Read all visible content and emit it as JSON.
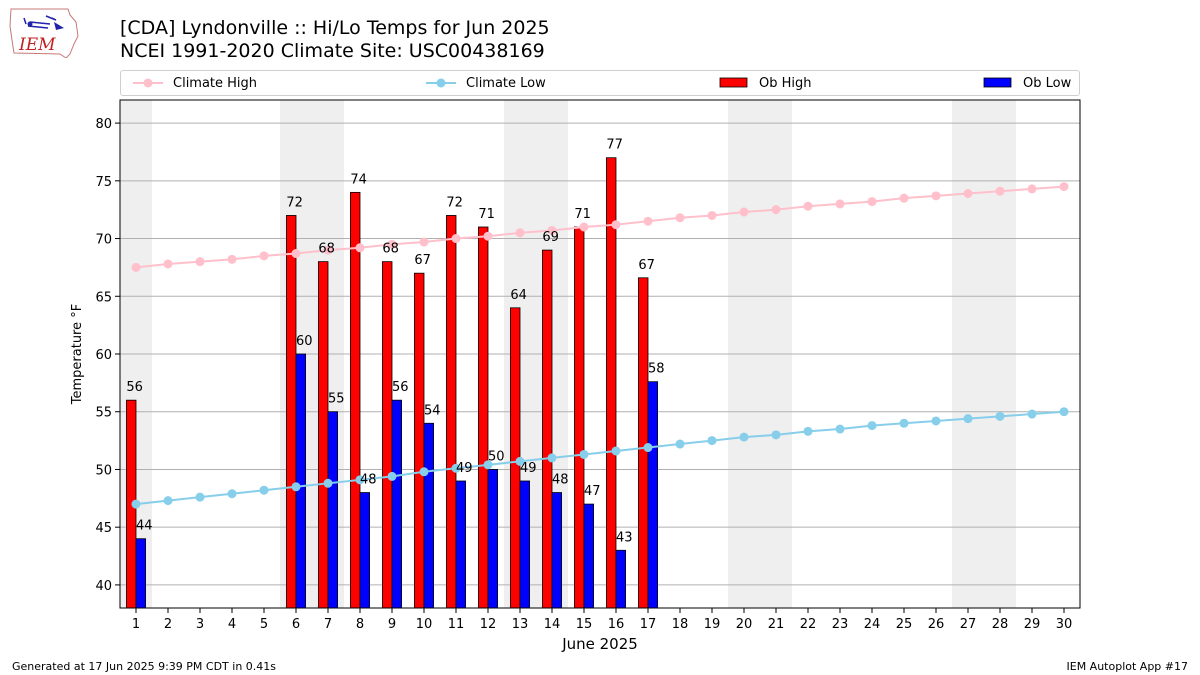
{
  "header": {
    "title_line1": "[CDA] Lyndonville :: Hi/Lo Temps for Jun 2025",
    "title_line2": "NCEI 1991-2020 Climate Site: USC00438169"
  },
  "logo": {
    "text": "IEM",
    "icon": "iem-iowa-logo"
  },
  "legend": {
    "climate_high": "Climate High",
    "climate_low": "Climate Low",
    "ob_high": "Ob High",
    "ob_low": "Ob Low"
  },
  "footer": {
    "left": "Generated at 17 Jun 2025 9:39 PM CDT in 0.41s",
    "right": "IEM Autoplot App #17"
  },
  "chart_data": {
    "type": "bar",
    "title": "[CDA] Lyndonville :: Hi/Lo Temps for Jun 2025",
    "subtitle": "NCEI 1991-2020 Climate Site: USC00438169",
    "xlabel": "June 2025",
    "ylabel": "Temperature °F",
    "xlim": [
      0.5,
      30.5
    ],
    "ylim": [
      38,
      82
    ],
    "yticks": [
      40,
      45,
      50,
      55,
      60,
      65,
      70,
      75,
      80
    ],
    "x": [
      1,
      2,
      3,
      4,
      5,
      6,
      7,
      8,
      9,
      10,
      11,
      12,
      13,
      14,
      15,
      16,
      17,
      18,
      19,
      20,
      21,
      22,
      23,
      24,
      25,
      26,
      27,
      28,
      29,
      30
    ],
    "grid": "horizontal",
    "legend_position": "top",
    "weekend_shading": [
      [
        0.5,
        1.5
      ],
      [
        5.5,
        7.5
      ],
      [
        12.5,
        14.5
      ],
      [
        19.5,
        21.5
      ],
      [
        26.5,
        28.5
      ]
    ],
    "colors": {
      "ob_high": "#ff0000",
      "ob_low": "#0000ff",
      "climate_high": "#ffc0cb",
      "climate_low": "#87ceeb",
      "weekend": "#efefef",
      "grid": "#b0b0b0"
    },
    "series": [
      {
        "name": "Ob High",
        "type": "bar",
        "values": [
          56,
          null,
          null,
          null,
          null,
          72,
          68,
          74,
          68,
          67,
          72,
          71,
          64,
          69,
          71,
          77,
          66.6,
          null,
          null,
          null,
          null,
          null,
          null,
          null,
          null,
          null,
          null,
          null,
          null,
          null
        ],
        "labels": [
          "56",
          "",
          "",
          "",
          "",
          "72",
          "68",
          "74",
          "68",
          "67",
          "72",
          "71",
          "64",
          "69",
          "71",
          "77",
          "67",
          "",
          "",
          "",
          "",
          "",
          "",
          "",
          "",
          "",
          "",
          "",
          "",
          ""
        ]
      },
      {
        "name": "Ob Low",
        "type": "bar",
        "values": [
          44,
          null,
          null,
          null,
          null,
          60,
          55,
          48,
          56,
          54,
          49,
          50,
          49,
          48,
          47,
          43,
          57.6,
          null,
          null,
          null,
          null,
          null,
          null,
          null,
          null,
          null,
          null,
          null,
          null,
          null
        ],
        "labels": [
          "44",
          "",
          "",
          "",
          "",
          "60",
          "55",
          "48",
          "56",
          "54",
          "49",
          "50",
          "49",
          "48",
          "47",
          "43",
          "58",
          "",
          "",
          "",
          "",
          "",
          "",
          "",
          "",
          "",
          "",
          "",
          "",
          ""
        ]
      },
      {
        "name": "Climate High",
        "type": "line",
        "values": [
          67.5,
          67.8,
          68.0,
          68.2,
          68.5,
          68.7,
          69.0,
          69.2,
          69.5,
          69.7,
          70.0,
          70.2,
          70.5,
          70.7,
          71.0,
          71.2,
          71.5,
          71.8,
          72.0,
          72.3,
          72.5,
          72.8,
          73.0,
          73.2,
          73.5,
          73.7,
          73.9,
          74.1,
          74.3,
          74.5
        ]
      },
      {
        "name": "Climate Low",
        "type": "line",
        "values": [
          47.0,
          47.3,
          47.6,
          47.9,
          48.2,
          48.5,
          48.8,
          49.1,
          49.4,
          49.8,
          50.1,
          50.4,
          50.7,
          51.0,
          51.3,
          51.6,
          51.9,
          52.2,
          52.5,
          52.8,
          53.0,
          53.3,
          53.5,
          53.8,
          54.0,
          54.2,
          54.4,
          54.6,
          54.8,
          55.0
        ]
      }
    ]
  }
}
